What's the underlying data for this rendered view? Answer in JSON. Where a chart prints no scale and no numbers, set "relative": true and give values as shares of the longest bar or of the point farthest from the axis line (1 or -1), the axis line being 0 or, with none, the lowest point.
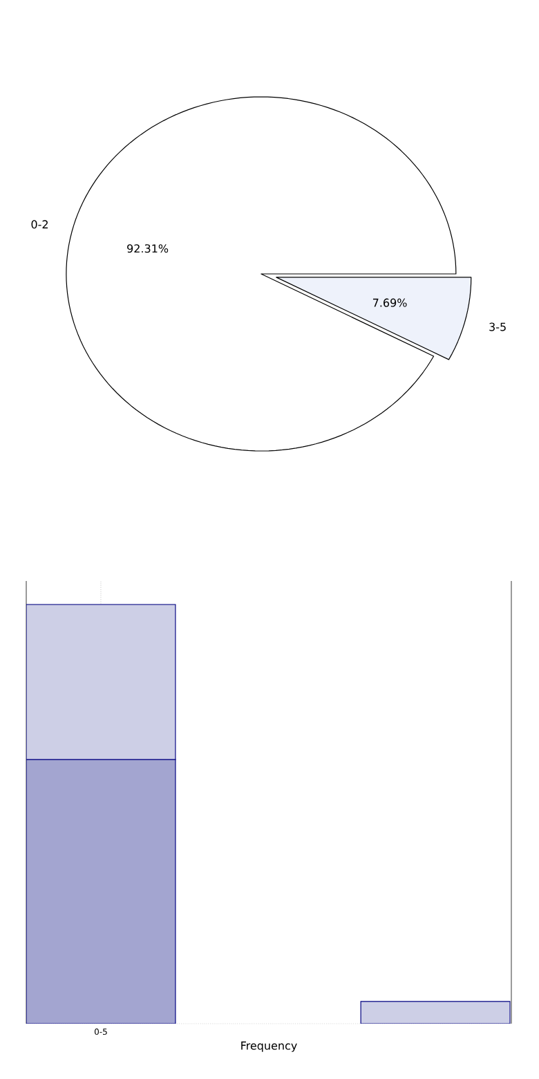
{
  "chart_data": [
    {
      "type": "pie",
      "categories": [
        "0-2",
        "3-5"
      ],
      "values": [
        92.31,
        7.69
      ],
      "colors": [
        "#ffffff",
        "#eef2fb"
      ],
      "value_labels": [
        "92.31%",
        "7.69%"
      ]
    },
    {
      "type": "bar",
      "relative": true,
      "stacked": true,
      "categories": [
        "0-5",
        null
      ],
      "xlabel": "Frequency",
      "grid": "x",
      "series": [
        {
          "color": "#a3a5d0",
          "values": [
            0.63,
            null
          ]
        },
        {
          "color": "#cdcfe6",
          "values": [
            0.37,
            0.053
          ]
        }
      ]
    }
  ]
}
